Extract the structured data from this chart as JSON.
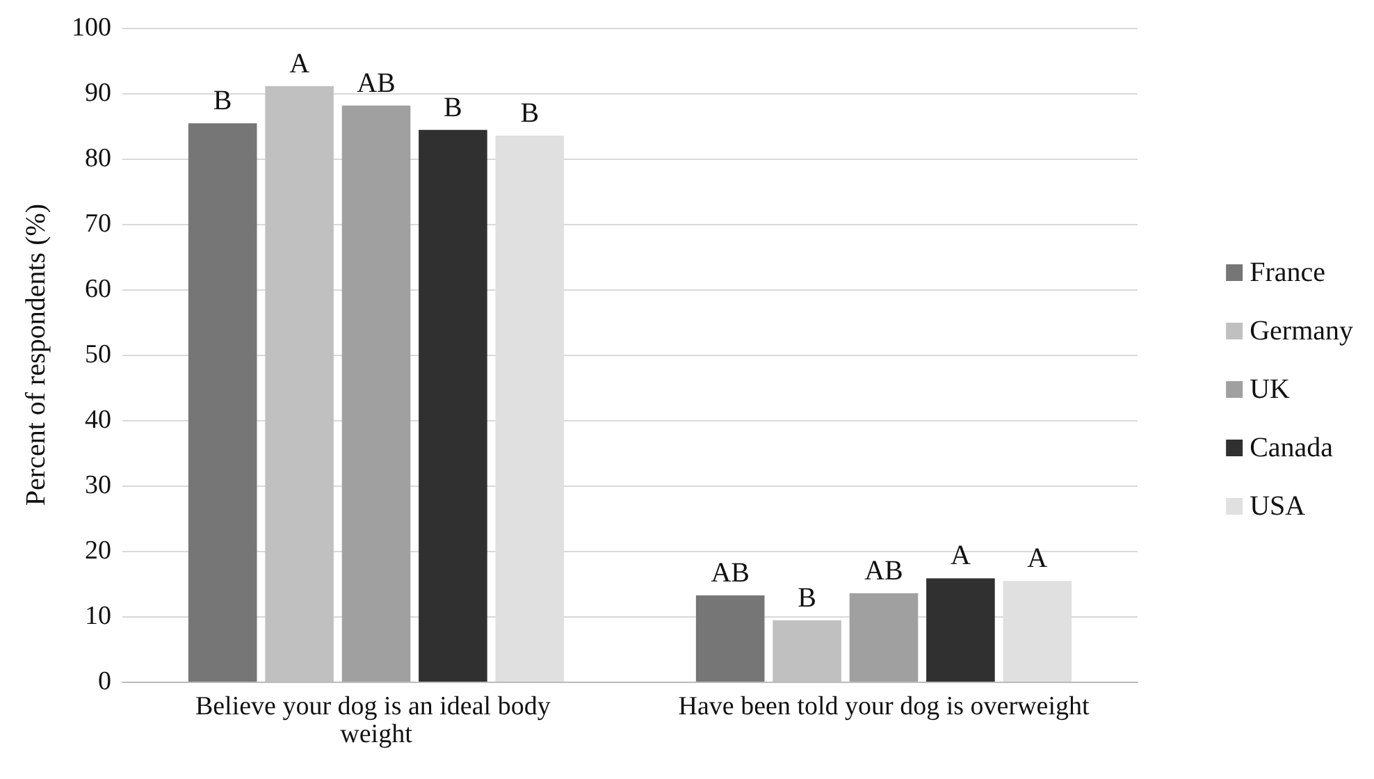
{
  "chart_data": {
    "type": "bar",
    "ylabel": "Percent of respondents (%)",
    "categories": [
      "Believe your dog is an ideal body weight",
      "Have been told your dog is overweight"
    ],
    "series": [
      {
        "name": "France",
        "color": "#767676",
        "values": [
          85.4,
          13.2
        ],
        "value_labels": [
          "B",
          "AB"
        ]
      },
      {
        "name": "Germany",
        "color": "#c0c0c0",
        "values": [
          91.1,
          9.4
        ],
        "value_labels": [
          "A",
          "B"
        ]
      },
      {
        "name": "UK",
        "color": "#a0a0a0",
        "values": [
          88.1,
          13.5
        ],
        "value_labels": [
          "AB",
          "AB"
        ]
      },
      {
        "name": "Canada",
        "color": "#303030",
        "values": [
          84.4,
          15.8
        ],
        "value_labels": [
          "B",
          "A"
        ]
      },
      {
        "name": "USA",
        "color": "#e0e0e0",
        "values": [
          83.5,
          15.4
        ],
        "value_labels": [
          "B",
          "A"
        ]
      }
    ],
    "ylim": [
      0,
      100
    ],
    "yticks": [
      0,
      10,
      20,
      30,
      40,
      50,
      60,
      70,
      80,
      90,
      100
    ],
    "grid": "y",
    "legend": "right"
  }
}
